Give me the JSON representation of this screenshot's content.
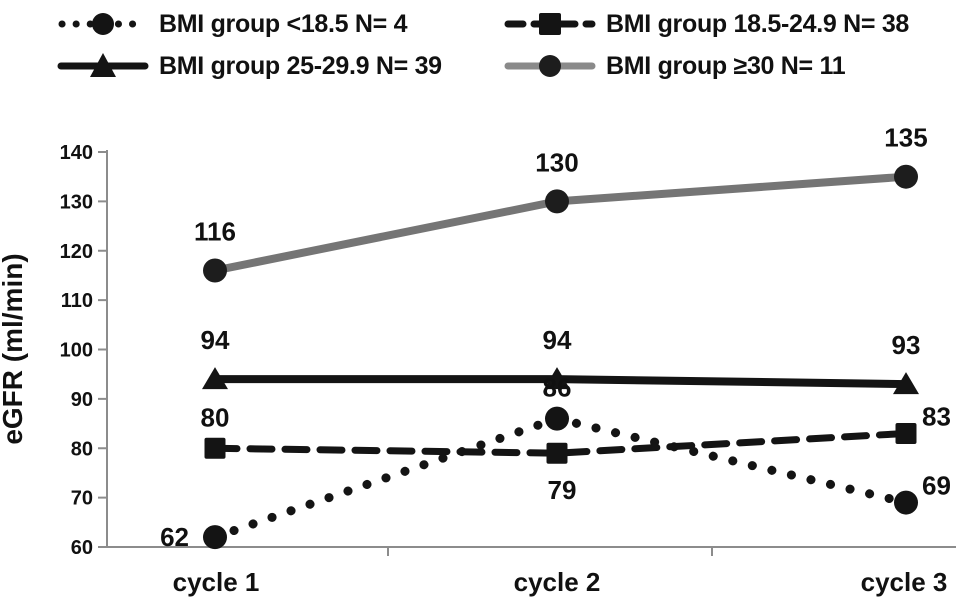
{
  "colors": {
    "series_black": "#141414",
    "series_gray": "#757575",
    "gray_series_marker": "#1d1d1d",
    "axis": "#8c8c8c",
    "text": "#111111",
    "background": "#ffffff"
  },
  "chart_data": {
    "type": "line",
    "title": "",
    "xlabel": "",
    "ylabel": "eGFR (ml/min)",
    "categories": [
      "cycle 1",
      "cycle 2",
      "cycle 3"
    ],
    "ylim": [
      60,
      140
    ],
    "ytick_step": 10,
    "grid": false,
    "data_labels": true,
    "legend_position": "top",
    "series": [
      {
        "name": "BMI group <18.5 N= 4",
        "values": [
          62,
          86,
          69
        ],
        "line_style": "dotted",
        "marker": "circle",
        "color": "#141414",
        "label_positions": [
          "left",
          "above",
          "right"
        ]
      },
      {
        "name": "BMI group 18.5-24.9 N= 38",
        "values": [
          80,
          79,
          83
        ],
        "line_style": "dashed",
        "marker": "square",
        "color": "#141414",
        "label_positions": [
          "above",
          "below",
          "right"
        ]
      },
      {
        "name": "BMI group 25-29.9 N= 39",
        "values": [
          94,
          94,
          93
        ],
        "line_style": "solid",
        "marker": "triangle",
        "color": "#141414",
        "label_positions": [
          "above",
          "above",
          "above"
        ]
      },
      {
        "name": "BMI group ≥30 N= 11",
        "values": [
          116,
          130,
          135
        ],
        "line_style": "solid",
        "marker": "circle",
        "color": "#757575",
        "marker_color": "#1d1d1d",
        "label_positions": [
          "above",
          "above",
          "above"
        ]
      }
    ]
  }
}
